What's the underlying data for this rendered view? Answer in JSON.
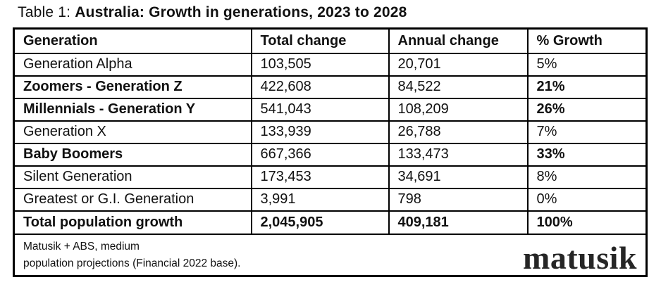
{
  "title": {
    "prefix": "Table 1: ",
    "main": "Australia: Growth in generations, 2023 to 2028"
  },
  "table": {
    "columns": {
      "generation": "Generation",
      "total_change": "Total change",
      "annual_change": "Annual change",
      "pct_growth": "% Growth"
    },
    "rows": [
      {
        "generation": "Generation Alpha",
        "total_change": "103,505",
        "annual_change": "20,701",
        "pct_growth": "5%"
      },
      {
        "generation": "Zoomers - Generation Z",
        "total_change": "422,608",
        "annual_change": "84,522",
        "pct_growth": "21%"
      },
      {
        "generation": "Millennials - Generation Y",
        "total_change": "541,043",
        "annual_change": "108,209",
        "pct_growth": "26%"
      },
      {
        "generation": "Generation X",
        "total_change": "133,939",
        "annual_change": "26,788",
        "pct_growth": "7%"
      },
      {
        "generation": "Baby Boomers",
        "total_change": "667,366",
        "annual_change": "133,473",
        "pct_growth": "33%"
      },
      {
        "generation": "Silent Generation",
        "total_change": "173,453",
        "annual_change": "34,691",
        "pct_growth": "8%"
      },
      {
        "generation": "Greatest or G.I. Generation",
        "total_change": "3,991",
        "annual_change": "798",
        "pct_growth": "0%"
      }
    ],
    "total_row": {
      "generation": "Total population growth",
      "total_change": "2,045,905",
      "annual_change": "409,181",
      "pct_growth": "100%"
    }
  },
  "footer": {
    "source_line1": "Matusik + ABS, medium",
    "source_line2": "population projections (Financial 2022 base).",
    "logo_text": "matusik"
  },
  "colors": {
    "text": "#111111",
    "border": "#000000",
    "logo": "#262626",
    "background": "#ffffff"
  },
  "chart_data": {
    "type": "table",
    "title": "Australia: Growth in generations, 2023 to 2028",
    "columns": [
      "Generation",
      "Total change",
      "Annual change",
      "% Growth"
    ],
    "rows": [
      [
        "Generation Alpha",
        103505,
        20701,
        5
      ],
      [
        "Zoomers - Generation Z",
        422608,
        84522,
        21
      ],
      [
        "Millennials - Generation Y",
        541043,
        108209,
        26
      ],
      [
        "Generation X",
        133939,
        26788,
        7
      ],
      [
        "Baby Boomers",
        667366,
        133473,
        33
      ],
      [
        "Silent Generation",
        173453,
        34691,
        8
      ],
      [
        "Greatest or G.I. Generation",
        3991,
        798,
        0
      ],
      [
        "Total population growth",
        2045905,
        409181,
        100
      ]
    ],
    "emphasized_rows": [
      "Zoomers - Generation Z",
      "Millennials - Generation Y",
      "Baby Boomers",
      "Total population growth"
    ],
    "pct_growth_unit": "%",
    "source": "Matusik + ABS, medium population projections (Financial 2022 base).",
    "brand": "matusik"
  }
}
